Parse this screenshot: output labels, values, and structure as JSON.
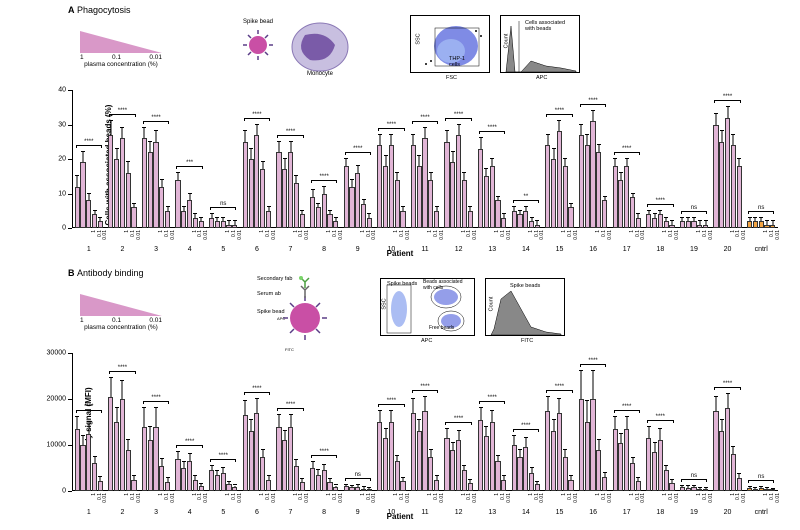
{
  "panelA": {
    "label": "A",
    "title": "Phagocytosis",
    "triangle": {
      "vals": [
        "1",
        "0.1",
        "0.01"
      ],
      "caption": "plasma concentration (%)",
      "color": "#d998c8"
    },
    "cartoon": {
      "bead": "Spike bead",
      "cell": "Monocyte"
    },
    "flow1": {
      "x": "FSC",
      "y": "SSC",
      "gate": "THP-1\ncells"
    },
    "flow2": {
      "x": "APC",
      "y": "Count",
      "gate": "Cells associated\nwith beads"
    },
    "chart": {
      "ylabel": "Cells with associated beads (%)",
      "xlabel": "Patient",
      "ymax": 40,
      "yticks": [
        0,
        10,
        20,
        30,
        40
      ],
      "concs": [
        "1",
        "1",
        "1",
        "0.1",
        "0.01"
      ],
      "barColors": {
        "patient": "#e1b5d6",
        "control": "#f4a442"
      },
      "patients": [
        {
          "id": "1",
          "sig": "****",
          "v": [
            12,
            19,
            8,
            4,
            2
          ],
          "e": [
            3,
            3,
            2,
            1,
            1
          ]
        },
        {
          "id": "2",
          "sig": "****",
          "v": [
            27,
            20,
            26,
            16,
            6
          ],
          "e": [
            4,
            3,
            3,
            3,
            1
          ]
        },
        {
          "id": "3",
          "sig": "****",
          "v": [
            26,
            22,
            25,
            12,
            5
          ],
          "e": [
            3,
            3,
            3,
            2,
            1
          ]
        },
        {
          "id": "4",
          "sig": "***",
          "v": [
            14,
            5,
            8,
            3,
            2
          ],
          "e": [
            2,
            1,
            2,
            1,
            1
          ]
        },
        {
          "id": "5",
          "sig": "ns",
          "v": [
            3,
            2,
            2,
            1,
            1
          ],
          "e": [
            1,
            1,
            1,
            1,
            1
          ]
        },
        {
          "id": "6",
          "sig": "****",
          "v": [
            25,
            20,
            27,
            17,
            5
          ],
          "e": [
            3,
            3,
            3,
            2,
            1
          ]
        },
        {
          "id": "7",
          "sig": "****",
          "v": [
            22,
            17,
            22,
            13,
            4
          ],
          "e": [
            3,
            3,
            3,
            2,
            1
          ]
        },
        {
          "id": "8",
          "sig": "****",
          "v": [
            9,
            6,
            10,
            4,
            2
          ],
          "e": [
            2,
            1,
            2,
            1,
            1
          ]
        },
        {
          "id": "9",
          "sig": "****",
          "v": [
            18,
            12,
            16,
            7,
            3
          ],
          "e": [
            2,
            2,
            2,
            1,
            1
          ]
        },
        {
          "id": "10",
          "sig": "****",
          "v": [
            24,
            18,
            24,
            14,
            5
          ],
          "e": [
            3,
            3,
            3,
            2,
            1
          ]
        },
        {
          "id": "11",
          "sig": "****",
          "v": [
            24,
            18,
            26,
            14,
            5
          ],
          "e": [
            3,
            3,
            3,
            2,
            1
          ]
        },
        {
          "id": "12",
          "sig": "****",
          "v": [
            25,
            19,
            27,
            14,
            5
          ],
          "e": [
            3,
            3,
            3,
            2,
            1
          ]
        },
        {
          "id": "13",
          "sig": "****",
          "v": [
            23,
            15,
            18,
            8,
            3
          ],
          "e": [
            3,
            2,
            2,
            1,
            1
          ]
        },
        {
          "id": "14",
          "sig": "**",
          "v": [
            5,
            4,
            5,
            2,
            1
          ],
          "e": [
            1,
            1,
            1,
            1,
            1
          ]
        },
        {
          "id": "15",
          "sig": "****",
          "v": [
            24,
            20,
            28,
            18,
            6
          ],
          "e": [
            3,
            3,
            3,
            2,
            1
          ]
        },
        {
          "id": "16",
          "sig": "****",
          "v": [
            27,
            24,
            31,
            22,
            8
          ],
          "e": [
            3,
            3,
            3,
            2,
            1
          ]
        },
        {
          "id": "17",
          "sig": "****",
          "v": [
            18,
            14,
            18,
            9,
            3
          ],
          "e": [
            2,
            2,
            2,
            1,
            1
          ]
        },
        {
          "id": "18",
          "sig": "****",
          "v": [
            4,
            3,
            4,
            2,
            1
          ],
          "e": [
            1,
            1,
            1,
            1,
            1
          ]
        },
        {
          "id": "19",
          "sig": "ns",
          "v": [
            2,
            2,
            2,
            1,
            1
          ],
          "e": [
            1,
            1,
            1,
            1,
            1
          ]
        },
        {
          "id": "20",
          "sig": "****",
          "v": [
            30,
            25,
            32,
            24,
            18
          ],
          "e": [
            3,
            3,
            3,
            3,
            2
          ]
        },
        {
          "id": "cntrl",
          "sig": "ns",
          "v": [
            2,
            2,
            2,
            1,
            1
          ],
          "e": [
            1,
            1,
            1,
            1,
            1
          ],
          "ctrl": true
        }
      ]
    }
  },
  "panelB": {
    "label": "B",
    "title": "Antibody binding",
    "triangle": {
      "vals": [
        "1",
        "0.1",
        "0.01"
      ],
      "caption": "plasma concentration (%)",
      "color": "#d998c8"
    },
    "cartoon": {
      "bead": "Spike bead",
      "ab1": "Secondary fab",
      "sub1": "FITC",
      "ab2": "Serum ab",
      "sub2": "APC"
    },
    "flow1": {
      "x": "APC",
      "y": "SSC",
      "gate": "Spike beads",
      "gate2": "Beads associated\nwith cells",
      "gate3": "Free beads"
    },
    "flow2": {
      "x": "FITC",
      "y": "Count",
      "gate": "Spike beads"
    },
    "chart": {
      "ylabel": "Antibody signal (MFI)",
      "xlabel": "Patient",
      "ymax": 30000,
      "yticks": [
        0,
        10000,
        20000,
        30000
      ],
      "concs": [
        "1",
        "1",
        "1",
        "0.1",
        "0.01"
      ],
      "barColors": {
        "patient": "#e1b5d6",
        "control": "#f4a442"
      },
      "patients": [
        {
          "id": "1",
          "sig": "****",
          "v": [
            13500,
            10000,
            12500,
            6000,
            2200
          ],
          "e": [
            2500,
            2000,
            2500,
            1500,
            800
          ]
        },
        {
          "id": "2",
          "sig": "****",
          "v": [
            20500,
            15000,
            20000,
            9000,
            2500
          ],
          "e": [
            4000,
            3000,
            4000,
            2000,
            800
          ]
        },
        {
          "id": "3",
          "sig": "****",
          "v": [
            14000,
            11000,
            14000,
            5500,
            2000
          ],
          "e": [
            4000,
            3000,
            4000,
            1500,
            800
          ]
        },
        {
          "id": "4",
          "sig": "****",
          "v": [
            7000,
            5000,
            6500,
            2500,
            1000
          ],
          "e": [
            1500,
            1200,
            1500,
            800,
            500
          ]
        },
        {
          "id": "5",
          "sig": "****",
          "v": [
            4500,
            3500,
            4000,
            1500,
            800
          ],
          "e": [
            1000,
            800,
            1000,
            500,
            400
          ]
        },
        {
          "id": "6",
          "sig": "****",
          "v": [
            16500,
            13000,
            17000,
            7500,
            2500
          ],
          "e": [
            3000,
            2500,
            3000,
            1500,
            800
          ]
        },
        {
          "id": "7",
          "sig": "****",
          "v": [
            14000,
            11000,
            14000,
            5500,
            2000
          ],
          "e": [
            2500,
            2000,
            2500,
            1200,
            700
          ]
        },
        {
          "id": "8",
          "sig": "****",
          "v": [
            5000,
            3500,
            4500,
            2000,
            800
          ],
          "e": [
            1200,
            1000,
            1200,
            700,
            400
          ]
        },
        {
          "id": "9",
          "sig": "ns",
          "v": [
            1000,
            800,
            900,
            500,
            400
          ],
          "e": [
            400,
            300,
            400,
            300,
            200
          ]
        },
        {
          "id": "10",
          "sig": "****",
          "v": [
            15000,
            11500,
            15000,
            6500,
            2200
          ],
          "e": [
            2500,
            2000,
            2500,
            1200,
            700
          ]
        },
        {
          "id": "11",
          "sig": "****",
          "v": [
            17000,
            13000,
            17500,
            7500,
            2500
          ],
          "e": [
            3000,
            2500,
            3000,
            1500,
            800
          ]
        },
        {
          "id": "12",
          "sig": "****",
          "v": [
            11500,
            9000,
            11000,
            4500,
            1800
          ],
          "e": [
            2000,
            1500,
            2000,
            1000,
            600
          ]
        },
        {
          "id": "13",
          "sig": "****",
          "v": [
            15500,
            12000,
            15000,
            6500,
            2500
          ],
          "e": [
            2500,
            2000,
            2500,
            1200,
            800
          ]
        },
        {
          "id": "14",
          "sig": "****",
          "v": [
            10000,
            7500,
            9500,
            4000,
            1500
          ],
          "e": [
            2000,
            1500,
            2000,
            1000,
            500
          ]
        },
        {
          "id": "15",
          "sig": "****",
          "v": [
            17500,
            13000,
            17000,
            7500,
            2500
          ],
          "e": [
            3000,
            2500,
            3000,
            1500,
            800
          ]
        },
        {
          "id": "16",
          "sig": "****",
          "v": [
            20000,
            15000,
            20000,
            9000,
            3000
          ],
          "e": [
            6000,
            4500,
            6000,
            2000,
            1000
          ]
        },
        {
          "id": "17",
          "sig": "****",
          "v": [
            13500,
            10500,
            13500,
            6000,
            2200
          ],
          "e": [
            2500,
            2000,
            2500,
            1200,
            700
          ]
        },
        {
          "id": "18",
          "sig": "****",
          "v": [
            11500,
            8500,
            11000,
            4500,
            1800
          ],
          "e": [
            2500,
            2000,
            2500,
            1000,
            600
          ]
        },
        {
          "id": "19",
          "sig": "ns",
          "v": [
            800,
            700,
            800,
            500,
            400
          ],
          "e": [
            300,
            300,
            300,
            200,
            200
          ]
        },
        {
          "id": "20",
          "sig": "****",
          "v": [
            17500,
            13000,
            18000,
            8000,
            2800
          ],
          "e": [
            3000,
            2500,
            3000,
            1500,
            800
          ]
        },
        {
          "id": "cntrl",
          "sig": "ns",
          "v": [
            600,
            500,
            600,
            400,
            300
          ],
          "e": [
            300,
            200,
            300,
            200,
            200
          ],
          "ctrl": true
        }
      ]
    }
  }
}
